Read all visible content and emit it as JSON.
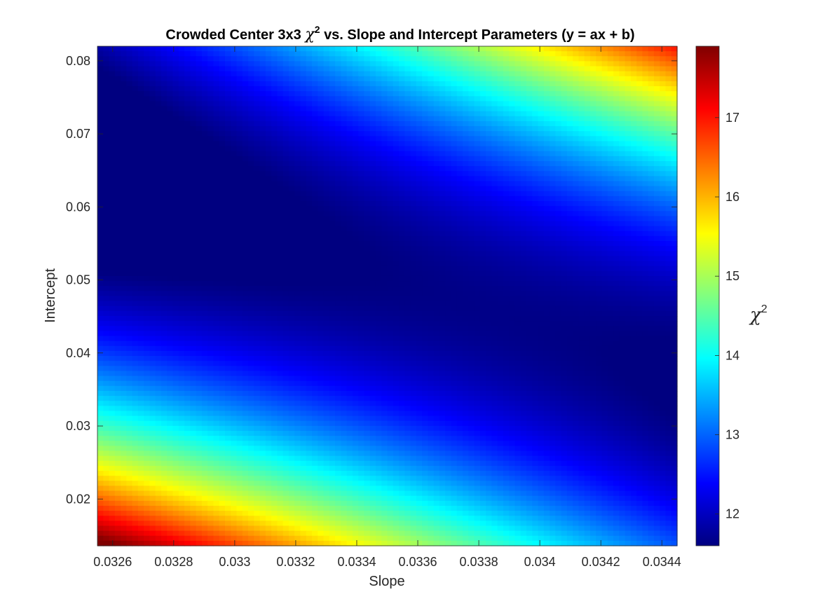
{
  "chart_data": {
    "type": "heatmap",
    "title": {
      "prefix": "Crowded Center 3x3",
      "symbol": "χ",
      "superscript": "2",
      "suffix": "vs. Slope and Intercept Parameters (y = ax + b)"
    },
    "xlabel": "Slope",
    "ylabel": "Intercept",
    "xlim": [
      0.03255,
      0.03445
    ],
    "ylim": [
      0.0136,
      0.082
    ],
    "x_ticks": [
      0.0326,
      0.0328,
      0.033,
      0.0332,
      0.0334,
      0.0336,
      0.0338,
      0.034,
      0.0342,
      0.0344
    ],
    "x_tick_labels": [
      "0.0326",
      "0.0328",
      "0.033",
      "0.0332",
      "0.0334",
      "0.0336",
      "0.0338",
      "0.034",
      "0.0342",
      "0.0344"
    ],
    "y_ticks": [
      0.02,
      0.03,
      0.04,
      0.05,
      0.06,
      0.07,
      0.08
    ],
    "y_tick_labels": [
      "0.02",
      "0.03",
      "0.04",
      "0.05",
      "0.06",
      "0.07",
      "0.08"
    ],
    "colorbar": {
      "label_symbol": "χ",
      "label_superscript": "2",
      "colormap": "jet",
      "clim": [
        11.6,
        17.9
      ],
      "ticks": [
        12,
        13,
        14,
        15,
        16,
        17
      ],
      "tick_labels": [
        "12",
        "13",
        "14",
        "15",
        "16",
        "17"
      ]
    },
    "grid": false,
    "model": {
      "description_of_surface": "quadratic chi-square bowl",
      "min_value": 11.65,
      "min_slope": 0.03385,
      "min_intercept": 0.0455,
      "corners": [
        {
          "slope": 0.03255,
          "intercept": 0.0136,
          "value": 17.85
        },
        {
          "slope": 0.03445,
          "intercept": 0.082,
          "value": 17.6
        },
        {
          "slope": 0.03255,
          "intercept": 0.082,
          "value": 12.2
        },
        {
          "slope": 0.03445,
          "intercept": 0.0136,
          "value": 12.0
        }
      ],
      "grid_size": [
        100,
        100
      ]
    }
  }
}
